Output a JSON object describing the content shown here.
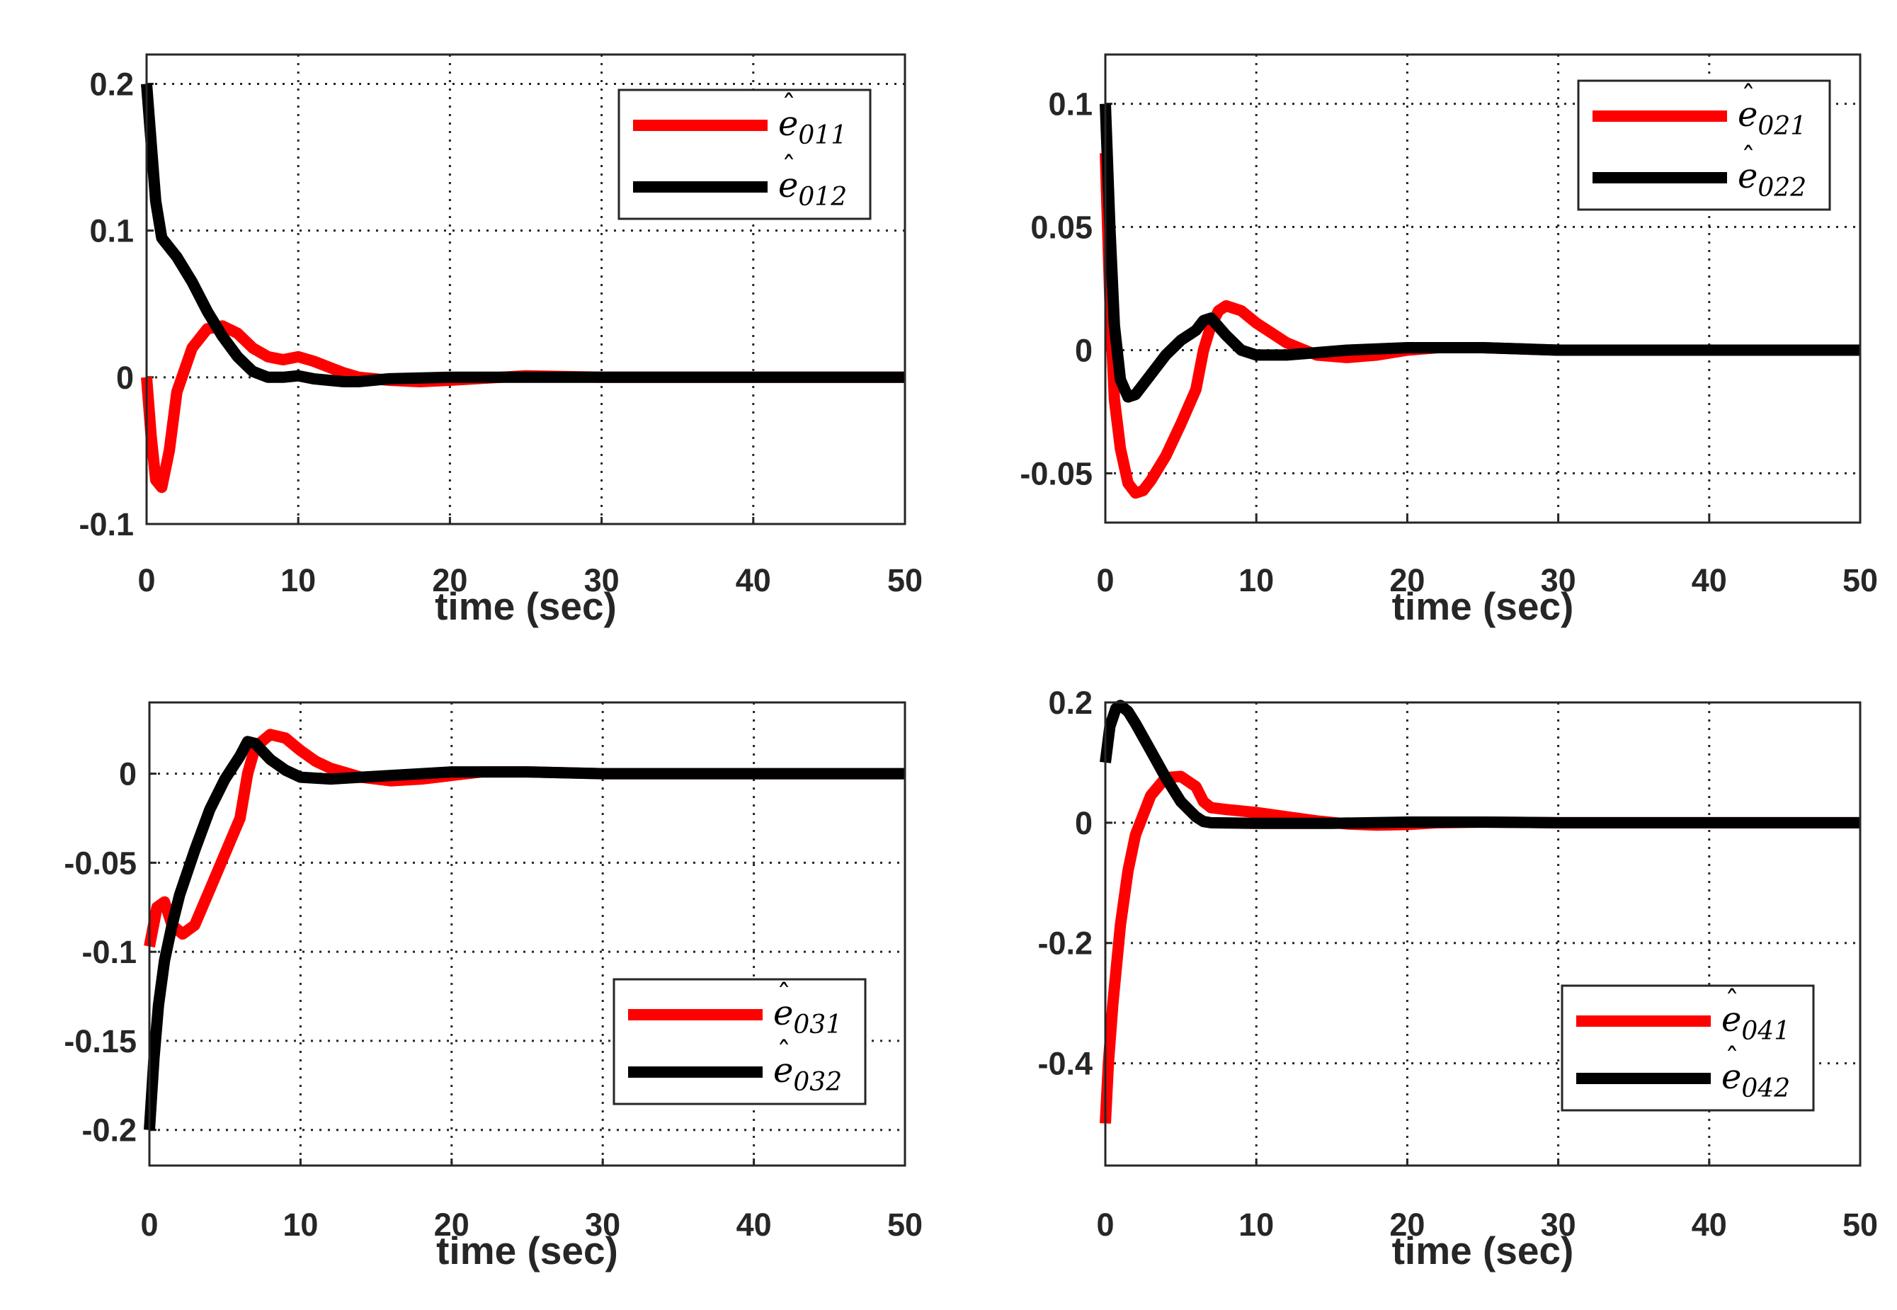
{
  "chart_data": [
    {
      "type": "line",
      "xlabel": "time (sec)",
      "xlim": [
        0,
        50
      ],
      "ylim": [
        -0.1,
        0.22
      ],
      "xticks": [
        "0",
        "10",
        "20",
        "30",
        "40",
        "50"
      ],
      "yticks": [
        {
          "v": -0.1,
          "label": "-0.1"
        },
        {
          "v": 0,
          "label": "0"
        },
        {
          "v": 0.1,
          "label": "0.1"
        },
        {
          "v": 0.2,
          "label": "0.2"
        }
      ],
      "grid": true,
      "legend_position": "top-right",
      "series": [
        {
          "name": "ê011",
          "base": "e",
          "sub": "011",
          "color": "#ff0000",
          "points": [
            [
              0,
              0
            ],
            [
              0.3,
              -0.04
            ],
            [
              0.6,
              -0.07
            ],
            [
              1,
              -0.075
            ],
            [
              1.5,
              -0.05
            ],
            [
              2,
              -0.01
            ],
            [
              3,
              0.02
            ],
            [
              4,
              0.033
            ],
            [
              5,
              0.035
            ],
            [
              6,
              0.03
            ],
            [
              7,
              0.02
            ],
            [
              8,
              0.014
            ],
            [
              9,
              0.012
            ],
            [
              10,
              0.014
            ],
            [
              11,
              0.011
            ],
            [
              12,
              0.007
            ],
            [
              13,
              0.003
            ],
            [
              14,
              0
            ],
            [
              16,
              -0.002
            ],
            [
              18,
              -0.003
            ],
            [
              20,
              -0.002
            ],
            [
              25,
              0.001
            ],
            [
              30,
              0
            ],
            [
              50,
              0
            ]
          ]
        },
        {
          "name": "ê012",
          "base": "e",
          "sub": "012",
          "color": "#000000",
          "points": [
            [
              0,
              0.2
            ],
            [
              0.3,
              0.16
            ],
            [
              0.6,
              0.12
            ],
            [
              1,
              0.095
            ],
            [
              2,
              0.082
            ],
            [
              3,
              0.065
            ],
            [
              4,
              0.045
            ],
            [
              5,
              0.028
            ],
            [
              6,
              0.014
            ],
            [
              7,
              0.004
            ],
            [
              8,
              0
            ],
            [
              9,
              0
            ],
            [
              10,
              0.001
            ],
            [
              11,
              -0.001
            ],
            [
              12,
              -0.002
            ],
            [
              13,
              -0.003
            ],
            [
              14,
              -0.003
            ],
            [
              16,
              -0.001
            ],
            [
              20,
              0
            ],
            [
              30,
              0
            ],
            [
              50,
              0
            ]
          ]
        }
      ]
    },
    {
      "type": "line",
      "xlabel": "time (sec)",
      "xlim": [
        0,
        50
      ],
      "ylim": [
        -0.07,
        0.12
      ],
      "xticks": [
        "0",
        "10",
        "20",
        "30",
        "40",
        "50"
      ],
      "yticks": [
        {
          "v": -0.05,
          "label": "-0.05"
        },
        {
          "v": 0,
          "label": "0"
        },
        {
          "v": 0.05,
          "label": "0.05"
        },
        {
          "v": 0.1,
          "label": "0.1"
        }
      ],
      "grid": true,
      "legend_position": "top-right",
      "series": [
        {
          "name": "ê021",
          "base": "e",
          "sub": "021",
          "color": "#ff0000",
          "points": [
            [
              0,
              0.08
            ],
            [
              0.3,
              0.02
            ],
            [
              0.6,
              -0.02
            ],
            [
              1,
              -0.04
            ],
            [
              1.5,
              -0.054
            ],
            [
              2,
              -0.058
            ],
            [
              2.5,
              -0.057
            ],
            [
              3,
              -0.053
            ],
            [
              4,
              -0.043
            ],
            [
              5,
              -0.03
            ],
            [
              6,
              -0.016
            ],
            [
              6.5,
              0
            ],
            [
              7,
              0.01
            ],
            [
              7.5,
              0.016
            ],
            [
              8,
              0.018
            ],
            [
              9,
              0.016
            ],
            [
              10,
              0.011
            ],
            [
              11,
              0.007
            ],
            [
              12,
              0.003
            ],
            [
              14,
              -0.002
            ],
            [
              16,
              -0.003
            ],
            [
              18,
              -0.002
            ],
            [
              20,
              0
            ],
            [
              22,
              0.001
            ],
            [
              25,
              0.001
            ],
            [
              30,
              0
            ],
            [
              50,
              0
            ]
          ]
        },
        {
          "name": "ê022",
          "base": "e",
          "sub": "022",
          "color": "#000000",
          "points": [
            [
              0,
              0.1
            ],
            [
              0.3,
              0.05
            ],
            [
              0.6,
              0.01
            ],
            [
              1,
              -0.012
            ],
            [
              1.5,
              -0.019
            ],
            [
              2,
              -0.018
            ],
            [
              3,
              -0.01
            ],
            [
              4,
              -0.002
            ],
            [
              5,
              0.004
            ],
            [
              6,
              0.008
            ],
            [
              6.5,
              0.012
            ],
            [
              7,
              0.013
            ],
            [
              8,
              0.006
            ],
            [
              9,
              0
            ],
            [
              10,
              -0.002
            ],
            [
              12,
              -0.002
            ],
            [
              14,
              -0.001
            ],
            [
              16,
              0
            ],
            [
              20,
              0.001
            ],
            [
              25,
              0.001
            ],
            [
              30,
              0
            ],
            [
              50,
              0
            ]
          ]
        }
      ]
    },
    {
      "type": "line",
      "xlabel": "time (sec)",
      "xlim": [
        0,
        50
      ],
      "ylim": [
        -0.22,
        0.04
      ],
      "xticks": [
        "0",
        "10",
        "20",
        "30",
        "40",
        "50"
      ],
      "yticks": [
        {
          "v": -0.2,
          "label": "-0.2"
        },
        {
          "v": -0.15,
          "label": "-0.15"
        },
        {
          "v": -0.1,
          "label": "-0.1"
        },
        {
          "v": -0.05,
          "label": "-0.05"
        },
        {
          "v": 0,
          "label": "0"
        }
      ],
      "grid": true,
      "legend_position": "bottom-right",
      "series": [
        {
          "name": "ê031",
          "base": "e",
          "sub": "031",
          "color": "#ff0000",
          "points": [
            [
              0,
              -0.097
            ],
            [
              0.5,
              -0.075
            ],
            [
              1,
              -0.072
            ],
            [
              1.5,
              -0.085
            ],
            [
              2.2,
              -0.09
            ],
            [
              3,
              -0.085
            ],
            [
              4,
              -0.065
            ],
            [
              5,
              -0.045
            ],
            [
              6,
              -0.025
            ],
            [
              6.5,
              0
            ],
            [
              7,
              0.015
            ],
            [
              8,
              0.022
            ],
            [
              9,
              0.02
            ],
            [
              10,
              0.013
            ],
            [
              11,
              0.007
            ],
            [
              12,
              0.003
            ],
            [
              14,
              -0.002
            ],
            [
              16,
              -0.004
            ],
            [
              18,
              -0.003
            ],
            [
              20,
              -0.001
            ],
            [
              22,
              0.001
            ],
            [
              25,
              0.001
            ],
            [
              30,
              0
            ],
            [
              50,
              0
            ]
          ]
        },
        {
          "name": "ê032",
          "base": "e",
          "sub": "032",
          "color": "#000000",
          "points": [
            [
              0,
              -0.2
            ],
            [
              0.3,
              -0.16
            ],
            [
              0.6,
              -0.13
            ],
            [
              1,
              -0.105
            ],
            [
              1.5,
              -0.085
            ],
            [
              2,
              -0.068
            ],
            [
              3,
              -0.043
            ],
            [
              4,
              -0.02
            ],
            [
              5,
              -0.003
            ],
            [
              6,
              0.01
            ],
            [
              6.5,
              0.018
            ],
            [
              7,
              0.017
            ],
            [
              8,
              0.008
            ],
            [
              9,
              0.002
            ],
            [
              10,
              -0.002
            ],
            [
              12,
              -0.003
            ],
            [
              14,
              -0.002
            ],
            [
              16,
              -0.001
            ],
            [
              20,
              0.001
            ],
            [
              25,
              0.001
            ],
            [
              30,
              0
            ],
            [
              50,
              0
            ]
          ]
        }
      ]
    },
    {
      "type": "line",
      "xlabel": "time (sec)",
      "xlim": [
        0,
        50
      ],
      "ylim": [
        -0.57,
        0.2
      ],
      "xticks": [
        "0",
        "10",
        "20",
        "30",
        "40",
        "50"
      ],
      "yticks": [
        {
          "v": -0.4,
          "label": "-0.4"
        },
        {
          "v": -0.2,
          "label": "-0.2"
        },
        {
          "v": 0,
          "label": "0"
        },
        {
          "v": 0.2,
          "label": "0.2"
        }
      ],
      "grid": true,
      "legend_position": "bottom-right",
      "series": [
        {
          "name": "ê041",
          "base": "e",
          "sub": "041",
          "color": "#ff0000",
          "points": [
            [
              0,
              -0.5
            ],
            [
              0.2,
              -0.4
            ],
            [
              0.5,
              -0.3
            ],
            [
              1,
              -0.17
            ],
            [
              1.5,
              -0.08
            ],
            [
              2,
              -0.02
            ],
            [
              3,
              0.045
            ],
            [
              4,
              0.075
            ],
            [
              5,
              0.077
            ],
            [
              6,
              0.06
            ],
            [
              6.5,
              0.035
            ],
            [
              7,
              0.025
            ],
            [
              8,
              0.022
            ],
            [
              10,
              0.017
            ],
            [
              12,
              0.01
            ],
            [
              14,
              0.003
            ],
            [
              16,
              -0.002
            ],
            [
              18,
              -0.004
            ],
            [
              20,
              -0.003
            ],
            [
              22,
              0
            ],
            [
              25,
              0.001
            ],
            [
              30,
              0
            ],
            [
              50,
              0
            ]
          ]
        },
        {
          "name": "ê042",
          "base": "e",
          "sub": "042",
          "color": "#000000",
          "points": [
            [
              0,
              0.1
            ],
            [
              0.3,
              0.16
            ],
            [
              0.7,
              0.19
            ],
            [
              1,
              0.195
            ],
            [
              1.5,
              0.185
            ],
            [
              2,
              0.165
            ],
            [
              3,
              0.12
            ],
            [
              4,
              0.075
            ],
            [
              5,
              0.035
            ],
            [
              6,
              0.01
            ],
            [
              6.5,
              0.002
            ],
            [
              7,
              0
            ],
            [
              10,
              -0.001
            ],
            [
              15,
              -0.001
            ],
            [
              20,
              0.001
            ],
            [
              25,
              0.001
            ],
            [
              30,
              0
            ],
            [
              50,
              0
            ]
          ]
        }
      ]
    }
  ]
}
